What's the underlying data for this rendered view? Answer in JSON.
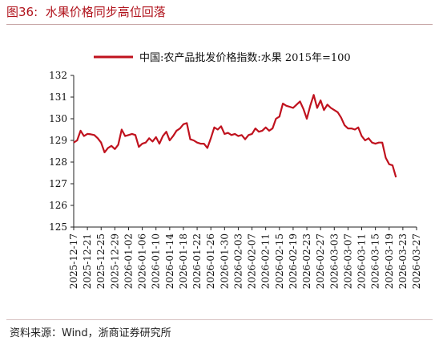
{
  "figure": {
    "label": "图36:",
    "title": "水果价格同步高位回落",
    "source": "资料来源：Wind，浙商证券研究所"
  },
  "chart_data": {
    "type": "line",
    "series": [
      {
        "name": "中国:农产品批发价格指数:水果 2015年=100",
        "color": "#c0121e",
        "points": [
          [
            "2025-12-17",
            128.9
          ],
          [
            "2025-12-18",
            129.0
          ],
          [
            "2025-12-19",
            129.45
          ],
          [
            "2025-12-20",
            129.2
          ],
          [
            "2025-12-21",
            129.3
          ],
          [
            "2025-12-22",
            129.28
          ],
          [
            "2025-12-23",
            129.25
          ],
          [
            "2025-12-24",
            129.1
          ],
          [
            "2025-12-25",
            128.9
          ],
          [
            "2025-12-26",
            128.45
          ],
          [
            "2025-12-27",
            128.65
          ],
          [
            "2025-12-28",
            128.75
          ],
          [
            "2025-12-29",
            128.6
          ],
          [
            "2025-12-30",
            128.8
          ],
          [
            "2025-12-31",
            129.5
          ],
          [
            "2026-01-01",
            129.2
          ],
          [
            "2026-01-02",
            129.25
          ],
          [
            "2026-01-03",
            129.3
          ],
          [
            "2026-01-04",
            129.25
          ],
          [
            "2026-01-05",
            128.7
          ],
          [
            "2026-01-06",
            128.85
          ],
          [
            "2026-01-07",
            128.9
          ],
          [
            "2026-01-08",
            129.1
          ],
          [
            "2026-01-09",
            128.95
          ],
          [
            "2026-01-10",
            129.15
          ],
          [
            "2026-01-11",
            128.85
          ],
          [
            "2026-01-12",
            129.2
          ],
          [
            "2026-01-13",
            129.4
          ],
          [
            "2026-01-14",
            129.0
          ],
          [
            "2026-01-15",
            129.2
          ],
          [
            "2026-01-16",
            129.45
          ],
          [
            "2026-01-17",
            129.55
          ],
          [
            "2026-01-18",
            129.75
          ],
          [
            "2026-01-19",
            129.8
          ],
          [
            "2026-01-20",
            129.05
          ],
          [
            "2026-01-21",
            129.0
          ],
          [
            "2026-01-22",
            128.9
          ],
          [
            "2026-01-23",
            128.85
          ],
          [
            "2026-01-24",
            128.85
          ],
          [
            "2026-01-25",
            128.65
          ],
          [
            "2026-01-26",
            129.1
          ],
          [
            "2026-01-27",
            129.6
          ],
          [
            "2026-01-28",
            129.5
          ],
          [
            "2026-01-29",
            129.65
          ],
          [
            "2026-01-30",
            129.3
          ],
          [
            "2026-01-31",
            129.35
          ],
          [
            "2026-02-01",
            129.25
          ],
          [
            "2026-02-02",
            129.3
          ],
          [
            "2026-02-03",
            129.2
          ],
          [
            "2026-02-04",
            129.25
          ],
          [
            "2026-02-05",
            129.05
          ],
          [
            "2026-02-06",
            129.25
          ],
          [
            "2026-02-07",
            129.3
          ],
          [
            "2026-02-08",
            129.55
          ],
          [
            "2026-02-09",
            129.4
          ],
          [
            "2026-02-10",
            129.45
          ],
          [
            "2026-02-11",
            129.6
          ],
          [
            "2026-02-12",
            129.45
          ],
          [
            "2026-02-13",
            129.55
          ],
          [
            "2026-02-14",
            130.0
          ],
          [
            "2026-02-15",
            130.1
          ],
          [
            "2026-02-16",
            130.7
          ],
          [
            "2026-02-17",
            130.6
          ],
          [
            "2026-02-18",
            130.55
          ],
          [
            "2026-02-19",
            130.5
          ],
          [
            "2026-02-20",
            130.65
          ],
          [
            "2026-02-21",
            130.8
          ],
          [
            "2026-02-22",
            130.45
          ],
          [
            "2026-02-23",
            130.0
          ],
          [
            "2026-02-24",
            130.6
          ],
          [
            "2026-02-25",
            131.1
          ],
          [
            "2026-02-26",
            130.5
          ],
          [
            "2026-02-27",
            130.85
          ],
          [
            "2026-02-28",
            130.4
          ],
          [
            "2026-03-01",
            130.65
          ],
          [
            "2026-03-02",
            130.5
          ],
          [
            "2026-03-03",
            130.4
          ],
          [
            "2026-03-04",
            130.3
          ],
          [
            "2026-03-05",
            130.05
          ],
          [
            "2026-03-06",
            129.7
          ],
          [
            "2026-03-07",
            129.55
          ],
          [
            "2026-03-08",
            129.55
          ],
          [
            "2026-03-09",
            129.5
          ],
          [
            "2026-03-10",
            129.6
          ],
          [
            "2026-03-11",
            129.2
          ],
          [
            "2026-03-12",
            129.0
          ],
          [
            "2026-03-13",
            129.1
          ],
          [
            "2026-03-14",
            128.9
          ],
          [
            "2026-03-15",
            128.85
          ],
          [
            "2026-03-16",
            128.9
          ],
          [
            "2026-03-17",
            128.9
          ],
          [
            "2026-03-18",
            128.2
          ],
          [
            "2026-03-19",
            127.9
          ],
          [
            "2026-03-20",
            127.85
          ],
          [
            "2026-03-21",
            127.3
          ]
        ]
      }
    ],
    "x_tick_labels": [
      "2025-12-17",
      "2025-12-21",
      "2025-12-25",
      "2025-12-29",
      "2026-01-02",
      "2026-01-06",
      "2026-01-10",
      "2026-01-14",
      "2026-01-18",
      "2026-01-22",
      "2026-01-26",
      "2026-01-30",
      "2026-02-03",
      "2026-02-07",
      "2026-02-11",
      "2026-02-15",
      "2026-02-19",
      "2026-02-23",
      "2026-02-27",
      "2026-03-03",
      "2026-03-07",
      "2026-03-11",
      "2026-03-15",
      "2026-03-19",
      "2026-03-23",
      "2026-03-27"
    ],
    "y_ticks": [
      125,
      126,
      127,
      128,
      129,
      130,
      131,
      132
    ],
    "ylim": [
      125,
      132
    ],
    "grid": false,
    "legend_position": "top"
  }
}
